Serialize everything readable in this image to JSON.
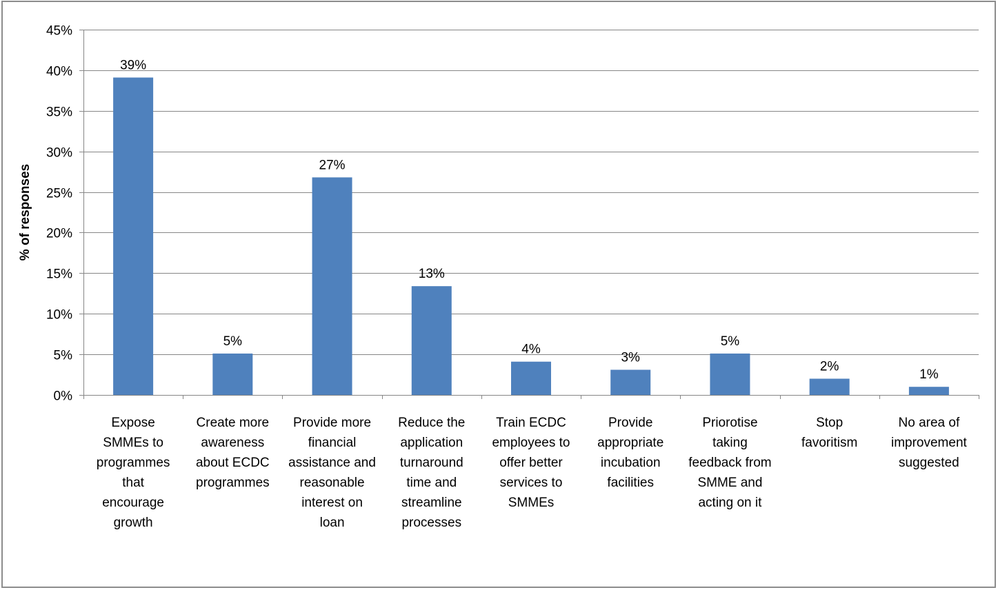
{
  "chart_data": {
    "type": "bar",
    "title": "",
    "xlabel": "",
    "ylabel": "% of responses",
    "ylim": [
      0,
      45
    ],
    "y_ticks": [
      0,
      5,
      10,
      15,
      20,
      25,
      30,
      35,
      40,
      45
    ],
    "y_tick_labels": [
      "0%",
      "5%",
      "10%",
      "15%",
      "20%",
      "25%",
      "30%",
      "35%",
      "40%",
      "45%"
    ],
    "grid": true,
    "legend": "none",
    "bar_color": "#4f81bd",
    "categories": [
      [
        "Expose",
        "SMMEs to",
        "programmes",
        "that",
        "encourage",
        "growth"
      ],
      [
        "Create more",
        "awareness",
        "about ECDC",
        "programmes"
      ],
      [
        "Provide more",
        "financial",
        "assistance and",
        "reasonable",
        "interest on",
        "loan"
      ],
      [
        "Reduce the",
        "application",
        "turnaround",
        "time and",
        "streamline",
        "processes"
      ],
      [
        "Train ECDC",
        "employees to",
        "offer better",
        "services to",
        "SMMEs"
      ],
      [
        "Provide",
        "appropriate",
        "incubation",
        "facilities"
      ],
      [
        "Priorotise",
        "taking",
        "feedback from",
        "SMME and",
        "acting on it"
      ],
      [
        "Stop",
        "favoritism"
      ],
      [
        "No area of",
        "improvement",
        "suggested"
      ]
    ],
    "values": [
      39.1,
      5.1,
      26.8,
      13.4,
      4.1,
      3.1,
      5.1,
      2.0,
      1.0
    ],
    "data_labels": [
      "39%",
      "5%",
      "27%",
      "13%",
      "4%",
      "3%",
      "5%",
      "2%",
      "1%"
    ]
  }
}
